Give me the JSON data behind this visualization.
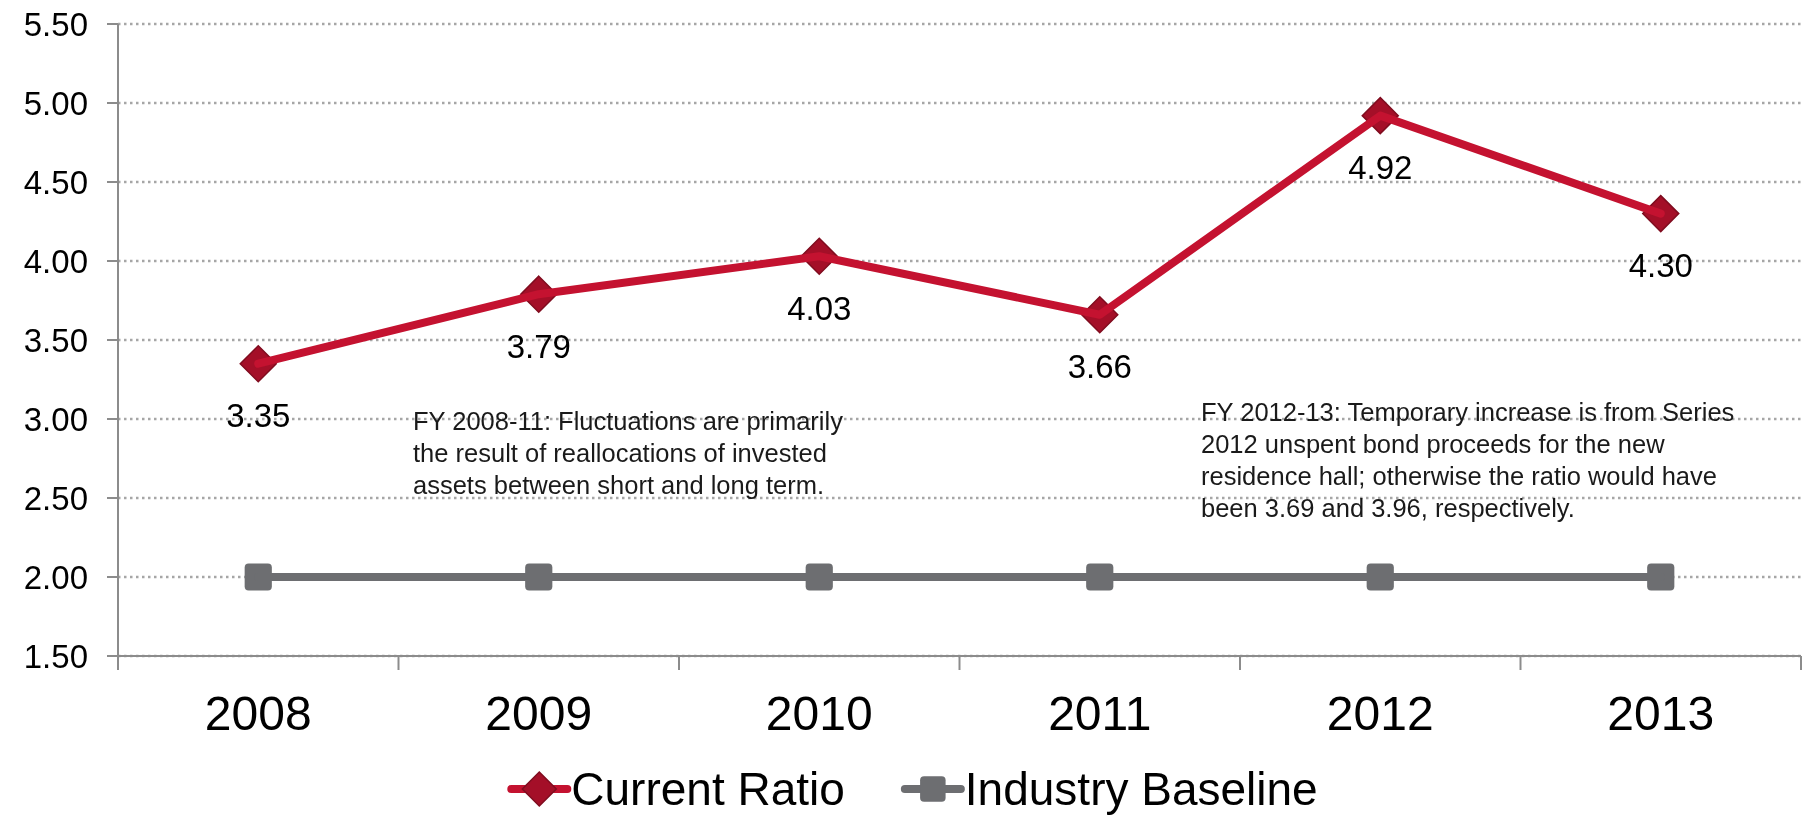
{
  "chart_data": {
    "type": "line",
    "categories": [
      "2008",
      "2009",
      "2010",
      "2011",
      "2012",
      "2013"
    ],
    "series": [
      {
        "name": "Current Ratio",
        "color": "#c41230",
        "marker": "diamond",
        "values": [
          3.35,
          3.79,
          4.03,
          3.66,
          4.92,
          4.3
        ],
        "value_labels": [
          "3.35",
          "3.79",
          "4.03",
          "3.66",
          "4.92",
          "4.30"
        ]
      },
      {
        "name": "Industry Baseline",
        "color": "#6d6e71",
        "marker": "square",
        "values": [
          2,
          2,
          2,
          2,
          2,
          2
        ]
      }
    ],
    "ylim": [
      1.5,
      5.5
    ],
    "yticks": [
      {
        "value": 1.5,
        "label": "1.50"
      },
      {
        "value": 2,
        "label": "2.00"
      },
      {
        "value": 2.5,
        "label": "2.50"
      },
      {
        "value": 3,
        "label": "3.00"
      },
      {
        "value": 3.5,
        "label": "3.50"
      },
      {
        "value": 4,
        "label": "4.00"
      },
      {
        "value": 4.5,
        "label": "4.50"
      },
      {
        "value": 5,
        "label": "5.00"
      },
      {
        "value": 5.5,
        "label": "5.50"
      }
    ],
    "grid": "y",
    "legend": "bottom",
    "annotations": [
      "FY 2008-11: Fluctuations are primarily the result of reallocations of invested assets between short and long term.",
      "FY 2012-13: Temporary increase is from Series 2012 unspent bond proceeds for the new residence hall; otherwise the ratio would have been 3.69 and 3.96, respectively."
    ]
  }
}
